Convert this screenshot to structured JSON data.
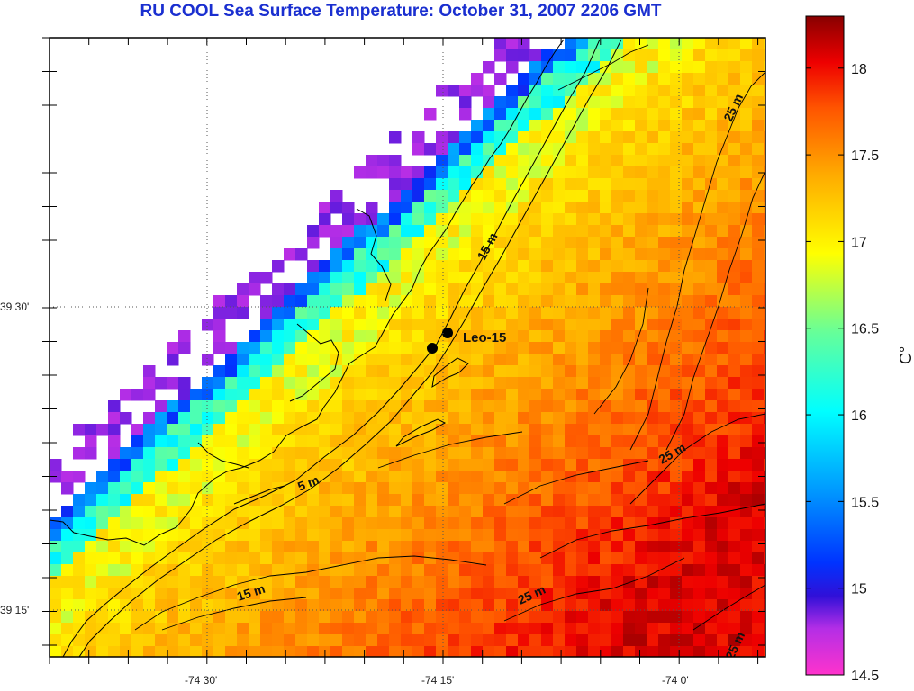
{
  "title": "RU COOL  Sea Surface Temperature:  October 31, 2007 2206 GMT",
  "lon_ticks": [
    "-74 30'",
    "-74 15'",
    "-74 0'"
  ],
  "lat_ticks": [
    "39 30'",
    "39 15'"
  ],
  "colorbar": {
    "ticks": [
      "18",
      "17.5",
      "17",
      "16.5",
      "16",
      "15.5",
      "15",
      "14.5"
    ],
    "unit": "C°",
    "min": 14.5,
    "max": 18.3
  },
  "station": {
    "label": "Leo-15"
  },
  "contours": [
    {
      "id": "c15a",
      "label": "15 m"
    },
    {
      "id": "c5",
      "label": "5 m"
    },
    {
      "id": "c15b",
      "label": "15 m"
    },
    {
      "id": "c25a",
      "label": "25 m"
    },
    {
      "id": "c25b",
      "label": "25 m"
    },
    {
      "id": "c25c",
      "label": "25 m"
    },
    {
      "id": "c25d",
      "label": "25 m"
    }
  ],
  "colors": {
    "title": "#1a2fd0",
    "land_flag": "#ff44bb",
    "coast": "#000000"
  }
}
